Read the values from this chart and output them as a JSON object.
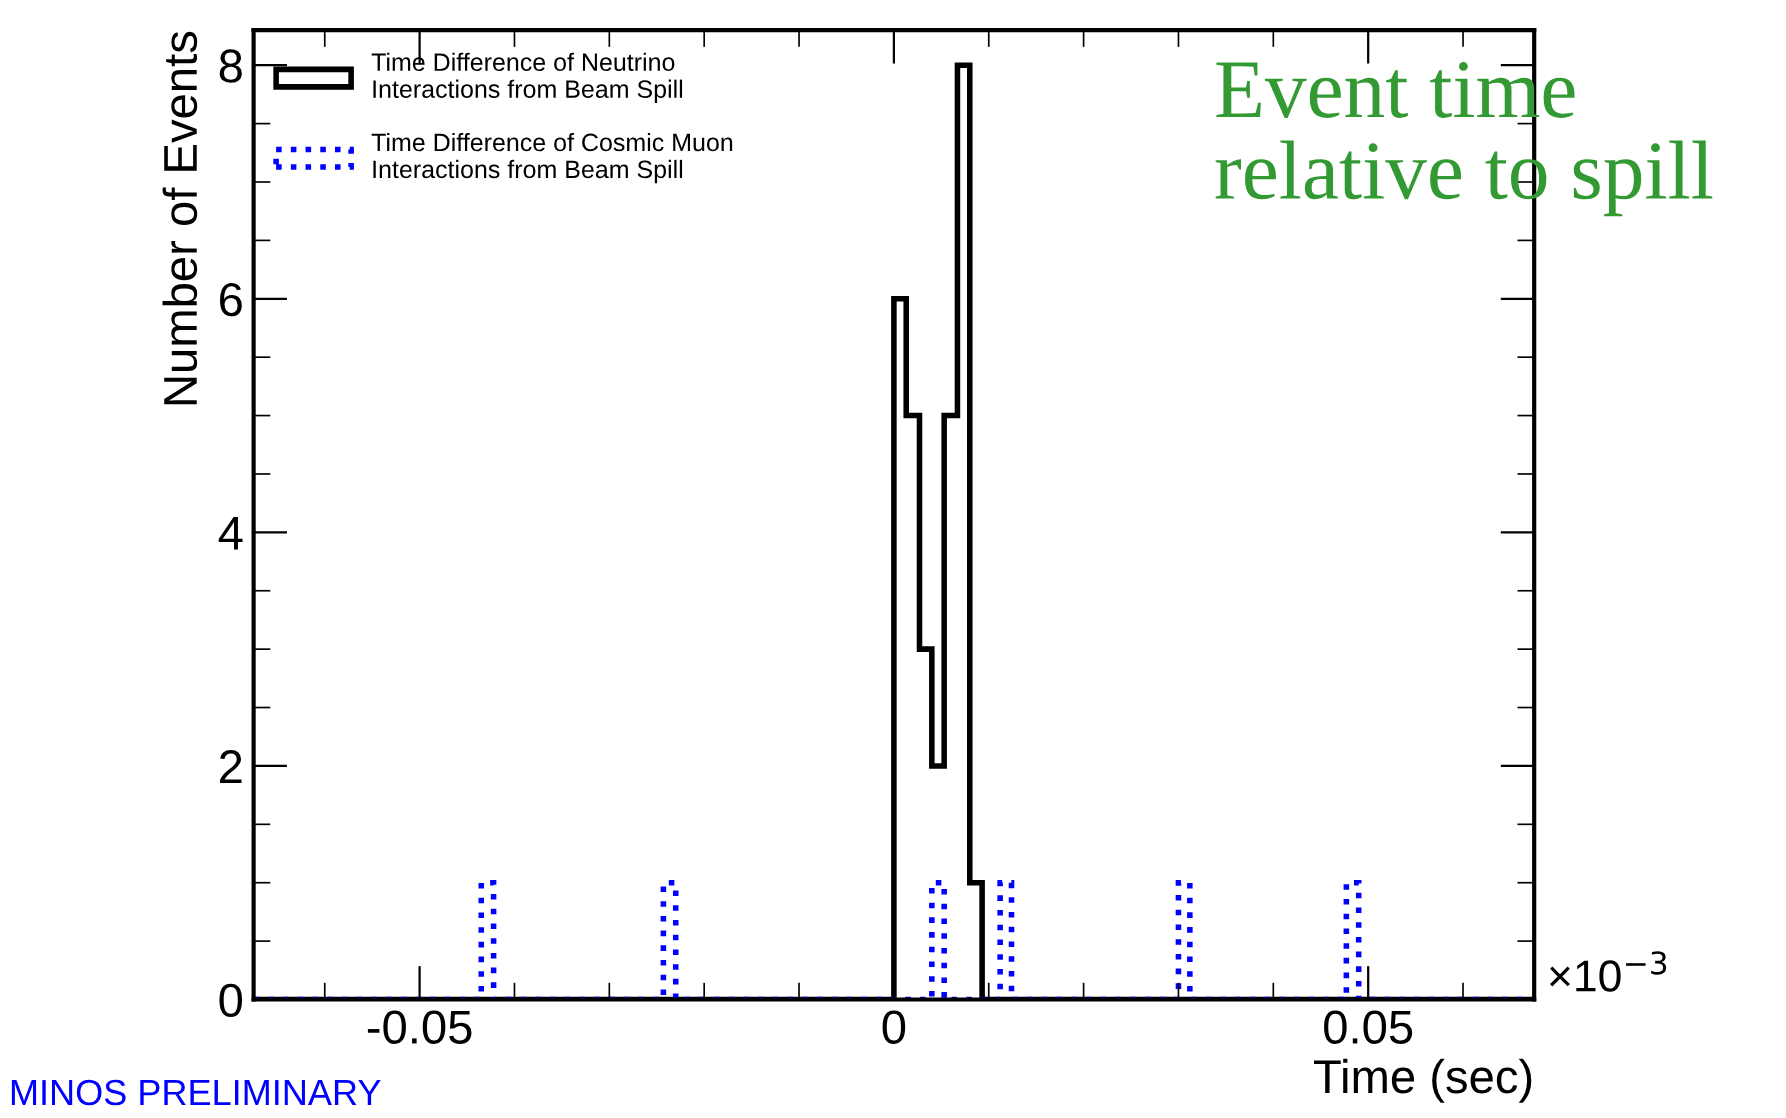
{
  "chart_data": {
    "type": "histogram",
    "xlabel": "Time (sec)",
    "ylabel": "Number of Events",
    "xlim": [
      -0.0675,
      0.0675
    ],
    "ylim": [
      0,
      8.3
    ],
    "xticks": [
      -0.05,
      0,
      0.05
    ],
    "yticks": [
      0,
      2,
      4,
      6,
      8
    ],
    "bins": [
      -0.0675,
      -0.0435,
      -0.0422,
      -0.0243,
      -0.023,
      0,
      0.0013,
      0.0027,
      0.004,
      0.0053,
      0.0067,
      0.008,
      0.0093,
      0.0112,
      0.0124,
      0.03,
      0.0312,
      0.0477,
      0.049,
      0.0675
    ],
    "series": [
      {
        "name": "Time Difference of Neutrino\nInteractions from Beam Spill",
        "color": "#000000",
        "line_style": "solid",
        "values": [
          0,
          0,
          0,
          0,
          0,
          6,
          5,
          3,
          2,
          5,
          8,
          1,
          0,
          0,
          0,
          0,
          0,
          0,
          0
        ]
      },
      {
        "name": "Time Difference of Cosmic Muon\nInteractions from Beam Spill",
        "color": "#0000ff",
        "line_style": "dotted",
        "values": [
          0,
          1,
          0,
          1,
          0,
          0,
          0,
          0,
          1,
          0,
          0,
          0,
          0,
          1,
          0,
          1,
          0,
          1,
          0
        ]
      }
    ],
    "legend": "top left",
    "grid": false,
    "annotations": [
      "Event time\nrelative to spill",
      "MINOS PRELIMINARY",
      "×10$^{−3}$"
    ]
  }
}
